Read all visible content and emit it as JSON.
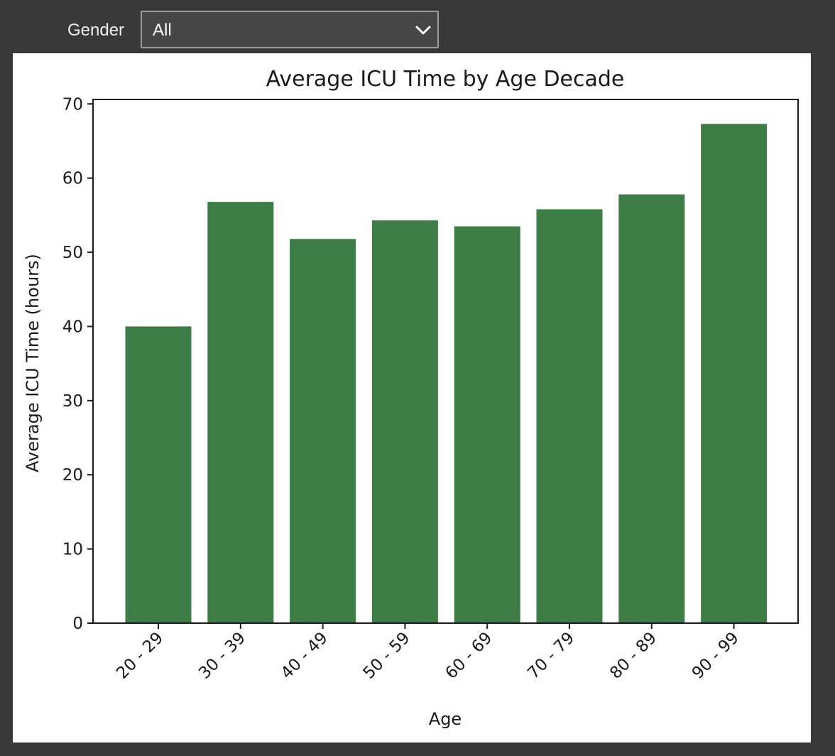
{
  "controls": {
    "gender_label": "Gender",
    "gender_value": "All"
  },
  "icons": {
    "dropdown": "chevron-down-icon"
  },
  "colors": {
    "bar": "#3d7d45",
    "background": "#383838",
    "panel": "#ffffff"
  },
  "chart_data": {
    "type": "bar",
    "title": "Average ICU Time by Age Decade",
    "xlabel": "Age",
    "ylabel": "Average ICU Time (hours)",
    "categories": [
      "20 - 29",
      "30 - 39",
      "40 - 49",
      "50 - 59",
      "60 - 69",
      "70 - 79",
      "80 - 89",
      "90 - 99"
    ],
    "values": [
      40.0,
      56.8,
      51.8,
      54.3,
      53.5,
      55.8,
      57.8,
      67.3
    ],
    "ylim": [
      0,
      70.6
    ],
    "yticks": [
      0,
      10,
      20,
      30,
      40,
      50,
      60,
      70
    ],
    "xtick_rotation": 45,
    "grid": false,
    "legend": "none"
  }
}
